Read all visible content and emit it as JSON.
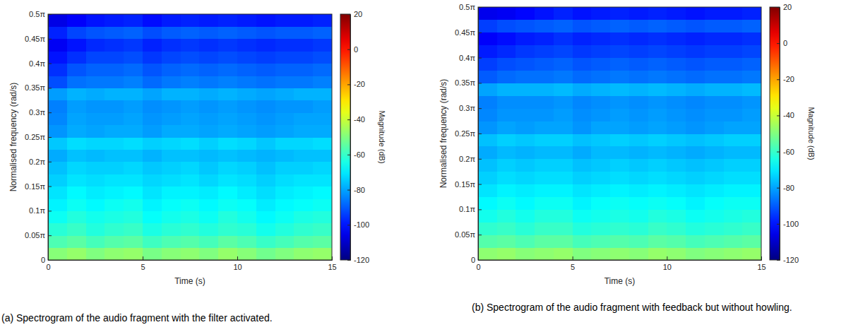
{
  "chart_data": [
    {
      "type": "heatmap",
      "title": "(a) Spectrogram of the audio fragment with the filter activated.",
      "x_label": "Time (s)",
      "y_label": "Normalised frequency (rad/s)",
      "xlim": [
        0,
        15
      ],
      "xticks": [
        0,
        5,
        10,
        15
      ],
      "ylim": [
        0,
        0.5
      ],
      "yticks": [
        0,
        {
          "value": 0.05,
          "label": "0.05π"
        },
        {
          "value": 0.1,
          "label": "0.1π"
        },
        {
          "value": 0.15,
          "label": "0.15π"
        },
        {
          "value": 0.2,
          "label": "0.2π"
        },
        {
          "value": 0.25,
          "label": "0.25π"
        },
        {
          "value": 0.3,
          "label": "0.3π"
        },
        {
          "value": 0.35,
          "label": "0.35π"
        },
        {
          "value": 0.4,
          "label": "0.4π"
        },
        {
          "value": 0.45,
          "label": "0.45π"
        },
        {
          "value": 0.5,
          "label": "0.5π"
        }
      ],
      "grid": false,
      "x_bins": [
        0,
        1,
        2,
        3,
        4,
        5,
        6,
        7,
        8,
        9,
        10,
        11,
        12,
        13,
        14,
        15
      ],
      "y_bins": [
        0,
        0.025,
        0.05,
        0.075,
        0.1,
        0.125,
        0.15,
        0.175,
        0.2,
        0.225,
        0.25,
        0.275,
        0.3,
        0.325,
        0.35,
        0.375,
        0.4,
        0.425,
        0.45,
        0.475,
        0.5
      ],
      "z": [
        [
          -49,
          -47,
          -50,
          -48,
          -47,
          -51,
          -49,
          -48,
          -50,
          -47,
          -49,
          -52,
          -50,
          -48,
          -47
        ],
        [
          -57,
          -55,
          -58,
          -56,
          -55,
          -59,
          -57,
          -56,
          -58,
          -55,
          -57,
          -60,
          -58,
          -56,
          -55
        ],
        [
          -62,
          -60,
          -63,
          -61,
          -60,
          -64,
          -62,
          -61,
          -63,
          -61,
          -62,
          -65,
          -63,
          -61,
          -60
        ],
        [
          -66,
          -63,
          -65,
          -64,
          -63,
          -67,
          -65,
          -64,
          -66,
          -63,
          -65,
          -68,
          -66,
          -64,
          -63
        ],
        [
          -69,
          -66,
          -68,
          -66,
          -65,
          -69,
          -67,
          -66,
          -68,
          -66,
          -67,
          -70,
          -68,
          -67,
          -66
        ],
        [
          -71,
          -68,
          -70,
          -69,
          -68,
          -71,
          -69,
          -69,
          -70,
          -68,
          -70,
          -72,
          -70,
          -69,
          -68
        ],
        [
          -74,
          -71,
          -72,
          -71,
          -71,
          -73,
          -72,
          -71,
          -73,
          -71,
          -72,
          -74,
          -72,
          -71,
          -71
        ],
        [
          -76,
          -73,
          -74,
          -74,
          -73,
          -75,
          -74,
          -73,
          -75,
          -73,
          -74,
          -76,
          -74,
          -74,
          -73
        ],
        [
          -79,
          -76,
          -77,
          -76,
          -76,
          -78,
          -76,
          -76,
          -77,
          -76,
          -77,
          -78,
          -77,
          -76,
          -76
        ],
        [
          -75,
          -72,
          -73,
          -73,
          -72,
          -74,
          -73,
          -72,
          -74,
          -72,
          -73,
          -75,
          -73,
          -73,
          -72
        ],
        [
          -82,
          -79,
          -80,
          -79,
          -79,
          -81,
          -79,
          -79,
          -80,
          -79,
          -80,
          -81,
          -80,
          -79,
          -79
        ],
        [
          -84,
          -80,
          -81,
          -81,
          -80,
          -82,
          -81,
          -80,
          -81,
          -80,
          -81,
          -82,
          -81,
          -80,
          -80
        ],
        [
          -85,
          -81,
          -82,
          -82,
          -81,
          -83,
          -82,
          -81,
          -82,
          -81,
          -82,
          -83,
          -82,
          -82,
          -81
        ],
        [
          -81,
          -78,
          -79,
          -78,
          -78,
          -80,
          -78,
          -78,
          -79,
          -78,
          -79,
          -80,
          -79,
          -78,
          -78
        ],
        [
          -92,
          -87,
          -86,
          -86,
          -85,
          -88,
          -86,
          -85,
          -86,
          -85,
          -86,
          -87,
          -86,
          -86,
          -85
        ],
        [
          -96,
          -91,
          -89,
          -89,
          -88,
          -91,
          -89,
          -88,
          -89,
          -88,
          -89,
          -90,
          -89,
          -89,
          -88
        ],
        [
          -100,
          -96,
          -93,
          -93,
          -92,
          -95,
          -93,
          -92,
          -93,
          -92,
          -93,
          -94,
          -93,
          -93,
          -92
        ],
        [
          -104,
          -100,
          -97,
          -96,
          -95,
          -98,
          -96,
          -95,
          -96,
          -95,
          -96,
          -97,
          -96,
          -96,
          -95
        ],
        [
          -98,
          -93,
          -91,
          -90,
          -89,
          -92,
          -90,
          -89,
          -90,
          -89,
          -90,
          -91,
          -90,
          -90,
          -89
        ],
        [
          -106,
          -103,
          -100,
          -99,
          -98,
          -101,
          -99,
          -98,
          -99,
          -98,
          -99,
          -100,
          -99,
          -99,
          -98
        ]
      ],
      "colorbar": {
        "label": "Magnitude (dB)",
        "range": [
          -120,
          20
        ],
        "ticks": [
          -120,
          -100,
          -80,
          -60,
          -40,
          -20,
          0,
          20
        ]
      }
    },
    {
      "type": "heatmap",
      "title": "(b) Spectrogram of the audio fragment with feedback but without howling.",
      "x_label": "Time (s)",
      "y_label": "Normalised frequency (rad/s)",
      "xlim": [
        0,
        15
      ],
      "xticks": [
        0,
        5,
        10,
        15
      ],
      "ylim": [
        0,
        0.5
      ],
      "yticks": [
        0,
        {
          "value": 0.05,
          "label": "0.05π"
        },
        {
          "value": 0.1,
          "label": "0.1π"
        },
        {
          "value": 0.15,
          "label": "0.15π"
        },
        {
          "value": 0.2,
          "label": "0.2π"
        },
        {
          "value": 0.25,
          "label": "0.25π"
        },
        {
          "value": 0.3,
          "label": "0.3π"
        },
        {
          "value": 0.35,
          "label": "0.35π"
        },
        {
          "value": 0.4,
          "label": "0.4π"
        },
        {
          "value": 0.45,
          "label": "0.45π"
        },
        {
          "value": 0.5,
          "label": "0.5π"
        }
      ],
      "grid": false,
      "x_bins": [
        0,
        1,
        2,
        3,
        4,
        5,
        6,
        7,
        8,
        9,
        10,
        11,
        12,
        13,
        14,
        15
      ],
      "y_bins": [
        0,
        0.025,
        0.05,
        0.075,
        0.1,
        0.125,
        0.15,
        0.175,
        0.2,
        0.225,
        0.25,
        0.275,
        0.3,
        0.325,
        0.35,
        0.375,
        0.4,
        0.425,
        0.45,
        0.475,
        0.5
      ],
      "z": [
        [
          -48,
          -47,
          -49,
          -48,
          -47,
          -50,
          -49,
          -48,
          -49,
          -47,
          -48,
          -50,
          -49,
          -48,
          -47
        ],
        [
          -56,
          -55,
          -57,
          -55,
          -55,
          -58,
          -57,
          -56,
          -57,
          -55,
          -56,
          -58,
          -57,
          -56,
          -55
        ],
        [
          -61,
          -60,
          -62,
          -60,
          -60,
          -63,
          -62,
          -61,
          -62,
          -60,
          -61,
          -63,
          -62,
          -61,
          -60
        ],
        [
          -65,
          -63,
          -65,
          -63,
          -63,
          -66,
          -65,
          -64,
          -65,
          -63,
          -64,
          -66,
          -65,
          -64,
          -63
        ],
        [
          -68,
          -66,
          -68,
          -66,
          -66,
          -69,
          -67,
          -66,
          -67,
          -66,
          -67,
          -69,
          -67,
          -66,
          -66
        ],
        [
          -71,
          -69,
          -70,
          -69,
          -69,
          -71,
          -70,
          -69,
          -70,
          -69,
          -70,
          -71,
          -70,
          -69,
          -69
        ],
        [
          -74,
          -72,
          -73,
          -72,
          -72,
          -74,
          -73,
          -72,
          -73,
          -72,
          -73,
          -74,
          -73,
          -72,
          -72
        ],
        [
          -76,
          -74,
          -75,
          -74,
          -74,
          -76,
          -75,
          -74,
          -75,
          -74,
          -75,
          -76,
          -75,
          -74,
          -74
        ],
        [
          -79,
          -77,
          -78,
          -77,
          -77,
          -79,
          -77,
          -77,
          -78,
          -77,
          -78,
          -79,
          -78,
          -77,
          -77
        ],
        [
          -76,
          -74,
          -75,
          -74,
          -74,
          -76,
          -75,
          -74,
          -75,
          -74,
          -75,
          -76,
          -75,
          -74,
          -74
        ],
        [
          -82,
          -80,
          -81,
          -80,
          -80,
          -82,
          -80,
          -80,
          -81,
          -80,
          -81,
          -82,
          -81,
          -80,
          -80
        ],
        [
          -84,
          -82,
          -82,
          -82,
          -81,
          -83,
          -82,
          -81,
          -82,
          -81,
          -82,
          -83,
          -82,
          -82,
          -81
        ],
        [
          -85,
          -83,
          -83,
          -83,
          -82,
          -84,
          -83,
          -82,
          -83,
          -82,
          -83,
          -84,
          -83,
          -83,
          -82
        ],
        [
          -80,
          -78,
          -78,
          -78,
          -77,
          -79,
          -78,
          -77,
          -78,
          -77,
          -78,
          -79,
          -78,
          -78,
          -77
        ],
        [
          -90,
          -88,
          -87,
          -87,
          -86,
          -88,
          -87,
          -86,
          -87,
          -86,
          -87,
          -88,
          -87,
          -87,
          -86
        ],
        [
          -94,
          -92,
          -91,
          -90,
          -89,
          -91,
          -90,
          -89,
          -90,
          -89,
          -90,
          -91,
          -90,
          -90,
          -89
        ],
        [
          -99,
          -97,
          -95,
          -94,
          -93,
          -95,
          -94,
          -93,
          -94,
          -93,
          -94,
          -95,
          -94,
          -94,
          -93
        ],
        [
          -103,
          -101,
          -99,
          -98,
          -96,
          -98,
          -97,
          -96,
          -97,
          -96,
          -97,
          -98,
          -97,
          -97,
          -96
        ],
        [
          -94,
          -92,
          -91,
          -90,
          -89,
          -91,
          -90,
          -89,
          -90,
          -89,
          -90,
          -91,
          -90,
          -90,
          -89
        ],
        [
          -105,
          -104,
          -102,
          -100,
          -98,
          -100,
          -99,
          -98,
          -99,
          -98,
          -99,
          -100,
          -99,
          -99,
          -98
        ]
      ],
      "colorbar": {
        "label": "Magnitude (dB)",
        "range": [
          -120,
          20
        ],
        "ticks": [
          -120,
          -100,
          -80,
          -60,
          -40,
          -20,
          0,
          20
        ]
      }
    }
  ]
}
